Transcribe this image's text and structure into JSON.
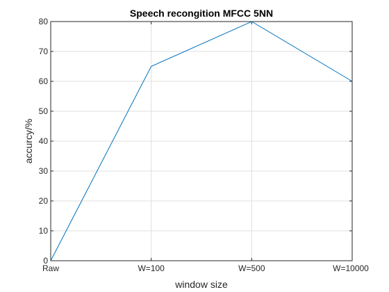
{
  "chart_data": {
    "type": "line",
    "title": "Speech recongition MFCC 5NN",
    "xlabel": "window size",
    "ylabel": "accurcy/%",
    "categories": [
      "Raw",
      "W=100",
      "W=500",
      "W=10000"
    ],
    "series": [
      {
        "values": [
          0,
          65,
          80,
          60
        ],
        "color": "#0072bd"
      }
    ],
    "ylim": [
      0,
      80
    ],
    "yticks": [
      0,
      10,
      20,
      30,
      40,
      50,
      60,
      70,
      80
    ],
    "grid": true
  }
}
